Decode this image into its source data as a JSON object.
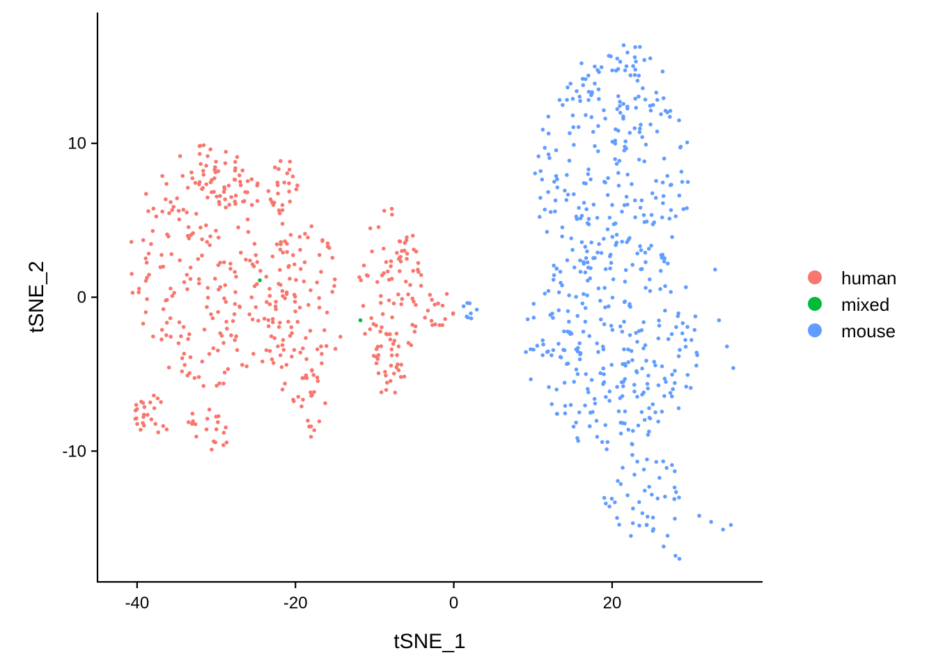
{
  "chart_data": {
    "type": "scatter",
    "title": "",
    "xlabel": "tSNE_1",
    "ylabel": "tSNE_2",
    "xlim": [
      -45,
      39
    ],
    "ylim": [
      -18.5,
      18.5
    ],
    "x_ticks": [
      -40,
      -20,
      0,
      20
    ],
    "y_ticks": [
      -10,
      0,
      10
    ],
    "x_tick_labels": [
      "-40",
      "-20",
      "0",
      "20"
    ],
    "y_tick_labels": [
      "-10",
      "0",
      "10"
    ],
    "grid": false,
    "legend_position": "right",
    "series": [
      {
        "name": "human",
        "color": "#F8766D",
        "regions": [
          {
            "cx": -30,
            "cy": 2,
            "rx": 11,
            "ry": 8,
            "n": 230,
            "seed": 11
          },
          {
            "cx": -29,
            "cy": 7.5,
            "rx": 4,
            "ry": 2,
            "n": 35,
            "seed": 12
          },
          {
            "cx": -22,
            "cy": 7.5,
            "rx": 3,
            "ry": 2,
            "n": 20,
            "seed": 13
          },
          {
            "cx": -38,
            "cy": -7.5,
            "rx": 3,
            "ry": 1.5,
            "n": 25,
            "seed": 14
          },
          {
            "cx": -31,
            "cy": -8.5,
            "rx": 3,
            "ry": 1.5,
            "n": 20,
            "seed": 15
          },
          {
            "cx": -19,
            "cy": -1,
            "rx": 5,
            "ry": 6,
            "n": 80,
            "seed": 16
          },
          {
            "cx": -18,
            "cy": -7,
            "rx": 2,
            "ry": 2.5,
            "n": 20,
            "seed": 17
          },
          {
            "cx": -8,
            "cy": 0.5,
            "rx": 4,
            "ry": 5.5,
            "n": 95,
            "seed": 18
          },
          {
            "cx": -8,
            "cy": -5.5,
            "rx": 2,
            "ry": 1.3,
            "n": 14,
            "seed": 19
          },
          {
            "cx": -2,
            "cy": -0.8,
            "rx": 2,
            "ry": 1.3,
            "n": 16,
            "seed": 20
          }
        ]
      },
      {
        "name": "mixed",
        "color": "#00BA38",
        "points": [
          [
            -24.5,
            1.1
          ],
          [
            -11.8,
            -1.5
          ]
        ]
      },
      {
        "name": "mouse",
        "color": "#619CFF",
        "regions": [
          {
            "cx": 20,
            "cy": 8,
            "rx": 10,
            "ry": 7,
            "n": 200,
            "seed": 31
          },
          {
            "cx": 20,
            "cy": -3,
            "rx": 11,
            "ry": 7,
            "n": 260,
            "seed": 32
          },
          {
            "cx": 21,
            "cy": 14,
            "rx": 6,
            "ry": 2.5,
            "n": 40,
            "seed": 33
          },
          {
            "cx": 24,
            "cy": -13,
            "rx": 5,
            "ry": 3,
            "n": 45,
            "seed": 34
          },
          {
            "cx": 2,
            "cy": -0.8,
            "rx": 1,
            "ry": 0.6,
            "n": 8,
            "seed": 35
          }
        ],
        "points": [
          [
            26.5,
            -16.2
          ],
          [
            28,
            -16.8
          ],
          [
            31,
            -14.2
          ],
          [
            32.5,
            -14.6
          ],
          [
            34,
            -15.1
          ],
          [
            35,
            -14.8
          ],
          [
            33.5,
            -1.5
          ],
          [
            34.5,
            -3.2
          ],
          [
            35.3,
            -4.6
          ],
          [
            33,
            1.8
          ],
          [
            28.5,
            -17
          ],
          [
            27,
            -15.5
          ]
        ]
      }
    ]
  },
  "legend": {
    "items": [
      {
        "label": "human",
        "color": "#F8766D"
      },
      {
        "label": "mixed",
        "color": "#00BA38"
      },
      {
        "label": "mouse",
        "color": "#619CFF"
      }
    ]
  }
}
